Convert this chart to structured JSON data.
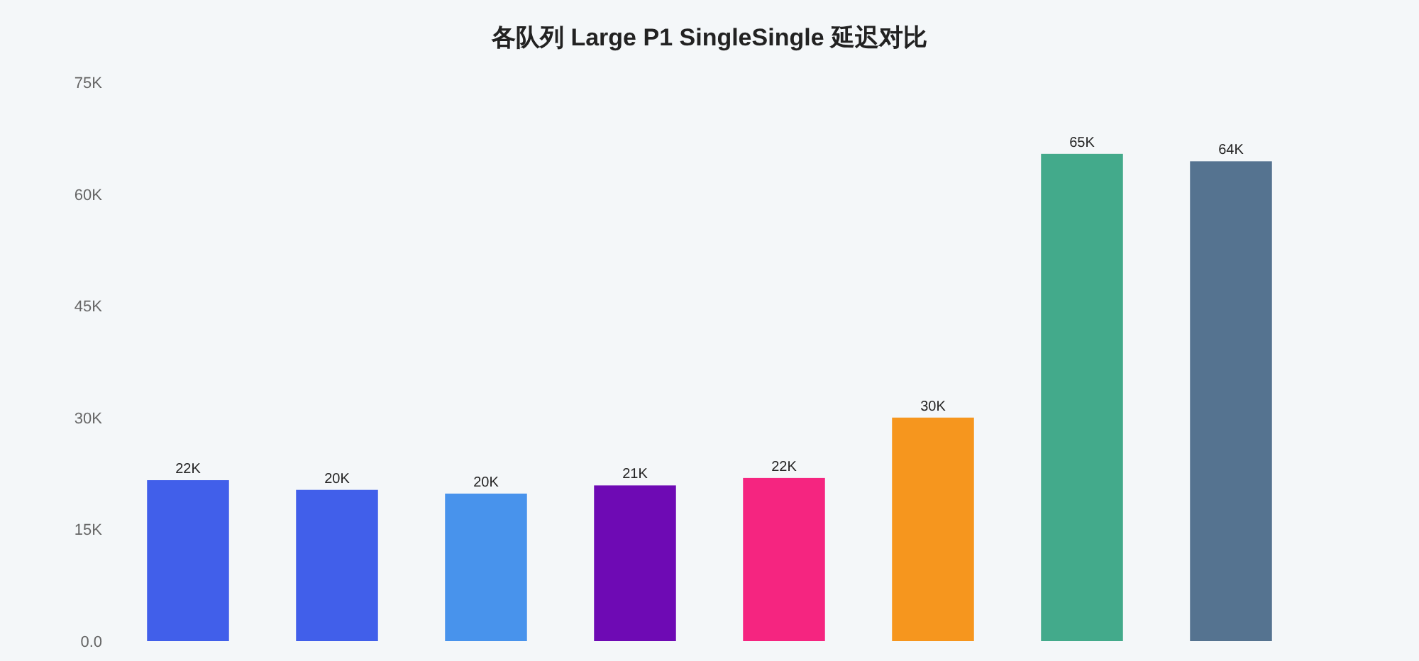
{
  "chart_data": {
    "type": "bar",
    "title": "各队列  Large P1 SingleSingle 延迟对比",
    "categories": [
      null,
      null,
      null,
      null,
      null,
      null,
      null,
      null
    ],
    "values": [
      21600,
      20300,
      19800,
      20900,
      21900,
      30000,
      65400,
      64400
    ],
    "colors": [
      "#415fea",
      "#415fea",
      "#4893ec",
      "#6e0ab4",
      "#f52580",
      "#f6961e",
      "#43aa8b",
      "#557390"
    ],
    "value_labels": [
      "22K",
      "20K",
      "20K",
      "21K",
      "22K",
      "30K",
      "65K",
      "64K"
    ],
    "ylim": [
      0,
      75000
    ],
    "yticks": [
      {
        "value": 0,
        "label": "0.0"
      },
      {
        "value": 15000,
        "label": "15K"
      },
      {
        "value": 30000,
        "label": "30K"
      },
      {
        "value": 45000,
        "label": "45K"
      },
      {
        "value": 60000,
        "label": "60K"
      },
      {
        "value": 75000,
        "label": "75K"
      }
    ]
  }
}
